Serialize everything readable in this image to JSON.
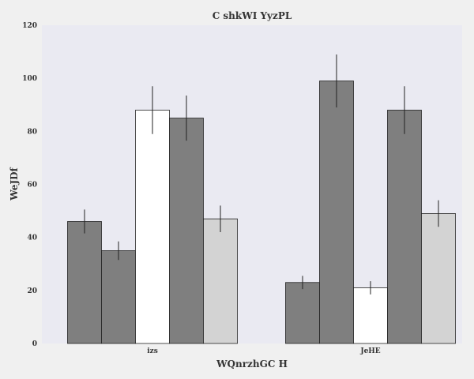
{
  "colors": {
    "page_background": "#f0f0f0",
    "plot_background": "#eaeaf2",
    "bar_stroke": "#222222",
    "error_bar": "#222222",
    "text": "#333333"
  },
  "chart_data": {
    "type": "bar",
    "title": "C shkWI YyzPL",
    "xlabel": "WQnrzhGC H",
    "ylabel": "WeJDf",
    "ylim": [
      0,
      120
    ],
    "yticks": [
      0,
      20,
      40,
      60,
      80,
      100,
      120
    ],
    "grid": false,
    "legend": "none",
    "categories": [
      "izs",
      "JeHE"
    ],
    "series": [
      {
        "color": "#7f7f7f",
        "values": [
          46,
          23
        ],
        "errors": [
          4.5,
          2.5
        ]
      },
      {
        "color": "#7f7f7f",
        "values": [
          35,
          99
        ],
        "errors": [
          3.5,
          10
        ]
      },
      {
        "color": "#ffffff",
        "values": [
          88,
          21
        ],
        "errors": [
          9,
          2.5
        ]
      },
      {
        "color": "#7f7f7f",
        "values": [
          85,
          88
        ],
        "errors": [
          8.5,
          9
        ]
      },
      {
        "color": "#d3d3d3",
        "values": [
          47,
          49
        ],
        "errors": [
          5,
          5
        ]
      }
    ]
  }
}
